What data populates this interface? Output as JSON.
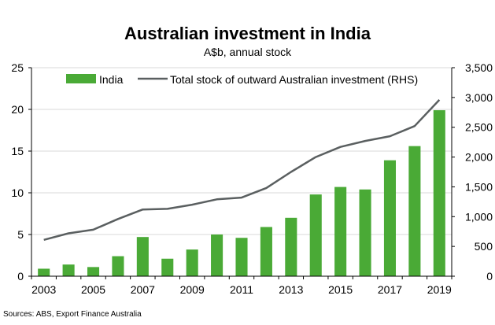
{
  "chart_data": {
    "type": "bar+line",
    "title": "Australian investment in India",
    "subtitle": "A$b, annual stock",
    "source": "Sources: ABS, Export Finance Australia",
    "categories": [
      2003,
      2004,
      2005,
      2006,
      2007,
      2008,
      2009,
      2010,
      2011,
      2012,
      2013,
      2014,
      2015,
      2016,
      2017,
      2018,
      2019
    ],
    "x_tick_labels": [
      "2003",
      "2005",
      "2007",
      "2009",
      "2011",
      "2013",
      "2015",
      "2017",
      "2019"
    ],
    "series": [
      {
        "name": "India",
        "type": "bar",
        "axis": "left",
        "color": "#4aaa36",
        "values": [
          0.9,
          1.4,
          1.1,
          2.4,
          4.7,
          2.1,
          3.2,
          5.0,
          4.6,
          5.9,
          7.0,
          9.8,
          10.7,
          10.4,
          13.9,
          15.6,
          19.9
        ]
      },
      {
        "name": "Total stock of outward Australian investment (RHS)",
        "type": "line",
        "axis": "right",
        "color": "#5a5f60",
        "values": [
          610,
          720,
          780,
          960,
          1120,
          1130,
          1200,
          1290,
          1320,
          1480,
          1750,
          2000,
          2170,
          2270,
          2350,
          2520,
          2960
        ]
      }
    ],
    "y_left": {
      "min": 0,
      "max": 25,
      "ticks": [
        "0",
        "5",
        "10",
        "15",
        "20",
        "25"
      ]
    },
    "y_right": {
      "min": 0,
      "max": 3500,
      "ticks": [
        "0",
        "500",
        "1,000",
        "1,500",
        "2,000",
        "2,500",
        "3,000",
        "3,500"
      ]
    },
    "grid": true,
    "legend_position": "top"
  }
}
